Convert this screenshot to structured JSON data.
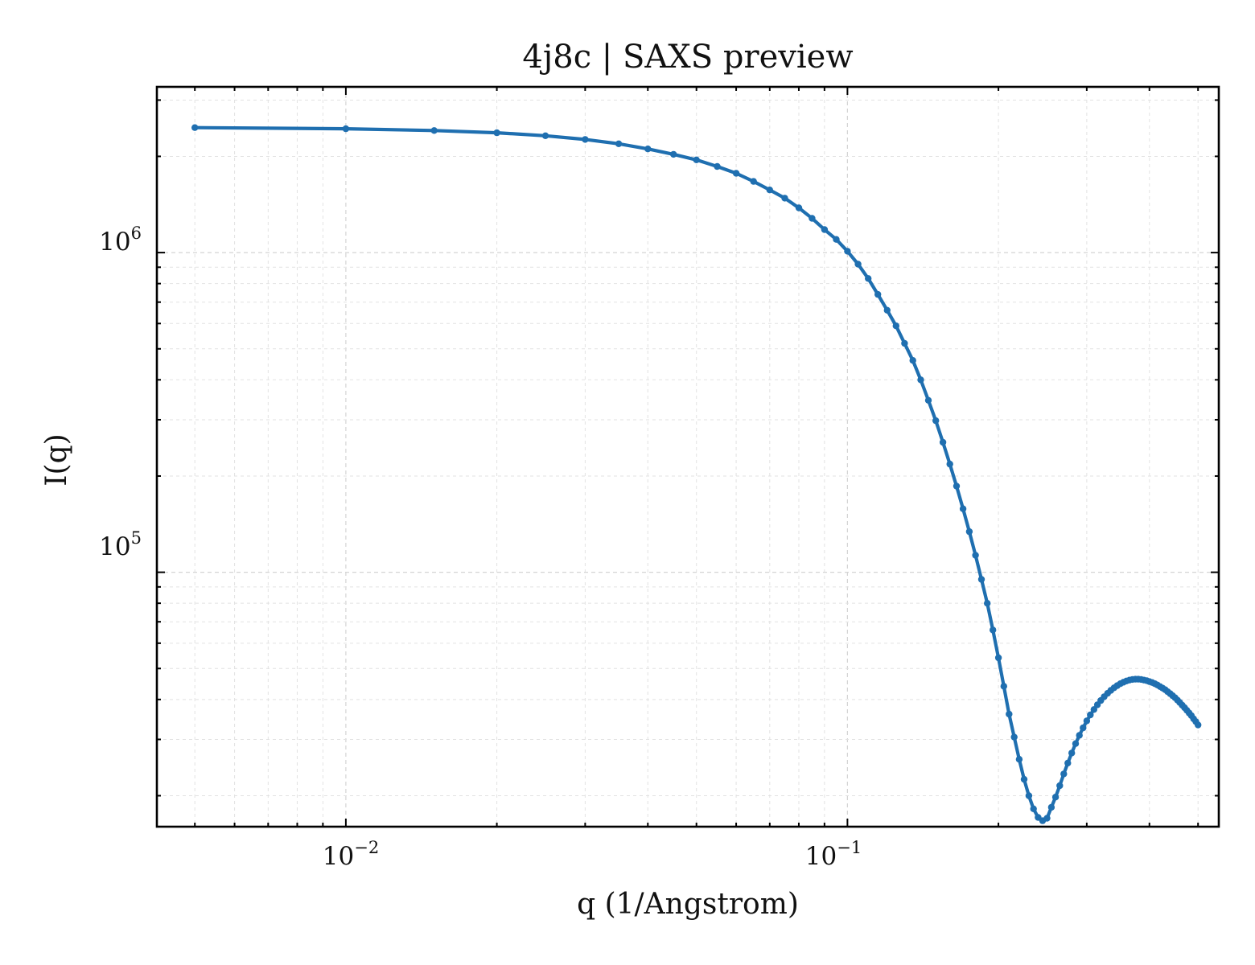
{
  "chart_data": {
    "type": "line",
    "title": "4j8c | SAXS preview",
    "xlabel": "q (1/Angstrom)",
    "ylabel": "I(q)",
    "xscale": "log",
    "yscale": "log",
    "xlim": [
      0.0042,
      0.55
    ],
    "ylim": [
      16000,
      3300000
    ],
    "grid": true,
    "legend": "none",
    "x_ticks": [
      {
        "base": "10",
        "exp": "−2",
        "value": 0.01
      },
      {
        "base": "10",
        "exp": "−1",
        "value": 0.1
      }
    ],
    "y_ticks": [
      {
        "base": "10",
        "exp": "5",
        "value": 100000
      },
      {
        "base": "10",
        "exp": "6",
        "value": 1000000
      }
    ],
    "series": [
      {
        "color": "#1f6fb0",
        "x": [
          0.005,
          0.01,
          0.015,
          0.02,
          0.025,
          0.03,
          0.035,
          0.04,
          0.045,
          0.05,
          0.055,
          0.06,
          0.065,
          0.07,
          0.075,
          0.08,
          0.085,
          0.09,
          0.095,
          0.1,
          0.105,
          0.11,
          0.115,
          0.12,
          0.125,
          0.13,
          0.135,
          0.14,
          0.145,
          0.15,
          0.155,
          0.16,
          0.165,
          0.17,
          0.175,
          0.18,
          0.185,
          0.19,
          0.195,
          0.2,
          0.205,
          0.21,
          0.215,
          0.22,
          0.225,
          0.23,
          0.235,
          0.24,
          0.245,
          0.25,
          0.255,
          0.26,
          0.265,
          0.27,
          0.275,
          0.28,
          0.285,
          0.29,
          0.295,
          0.3,
          0.305,
          0.31,
          0.315,
          0.32,
          0.325,
          0.33,
          0.335,
          0.34,
          0.345,
          0.35,
          0.355,
          0.36,
          0.365,
          0.37,
          0.375,
          0.38,
          0.385,
          0.39,
          0.395,
          0.4,
          0.405,
          0.41,
          0.415,
          0.42,
          0.425,
          0.43,
          0.435,
          0.44,
          0.445,
          0.45,
          0.455,
          0.46,
          0.465,
          0.47,
          0.475,
          0.48,
          0.485,
          0.49,
          0.495,
          0.5
        ],
        "y": [
          2460000,
          2440000,
          2410000,
          2370000,
          2320000,
          2260000,
          2190000,
          2110000,
          2030000,
          1950000,
          1860000,
          1770000,
          1670000,
          1570000,
          1480000,
          1380000,
          1280000,
          1180000,
          1100000,
          1010000,
          920000,
          830000,
          740000,
          660000,
          590000,
          520000,
          460000,
          400000,
          345000,
          298000,
          255000,
          218000,
          186000,
          158000,
          134000,
          113000,
          95000,
          80000,
          66000,
          54000,
          44000,
          36000,
          30500,
          26000,
          22500,
          20000,
          18200,
          17100,
          16700,
          17000,
          18400,
          19800,
          21500,
          23400,
          25300,
          27200,
          29100,
          30900,
          32600,
          34300,
          35800,
          37200,
          38500,
          39700,
          40800,
          41800,
          42700,
          43500,
          44200,
          44800,
          45300,
          45700,
          46000,
          46200,
          46300,
          46300,
          46200,
          46000,
          45800,
          45500,
          45200,
          44800,
          44400,
          43900,
          43400,
          42900,
          42300,
          41700,
          41100,
          40500,
          39800,
          39100,
          38400,
          37700,
          37000,
          36300,
          35600,
          34800,
          34100,
          33300
        ]
      }
    ]
  }
}
